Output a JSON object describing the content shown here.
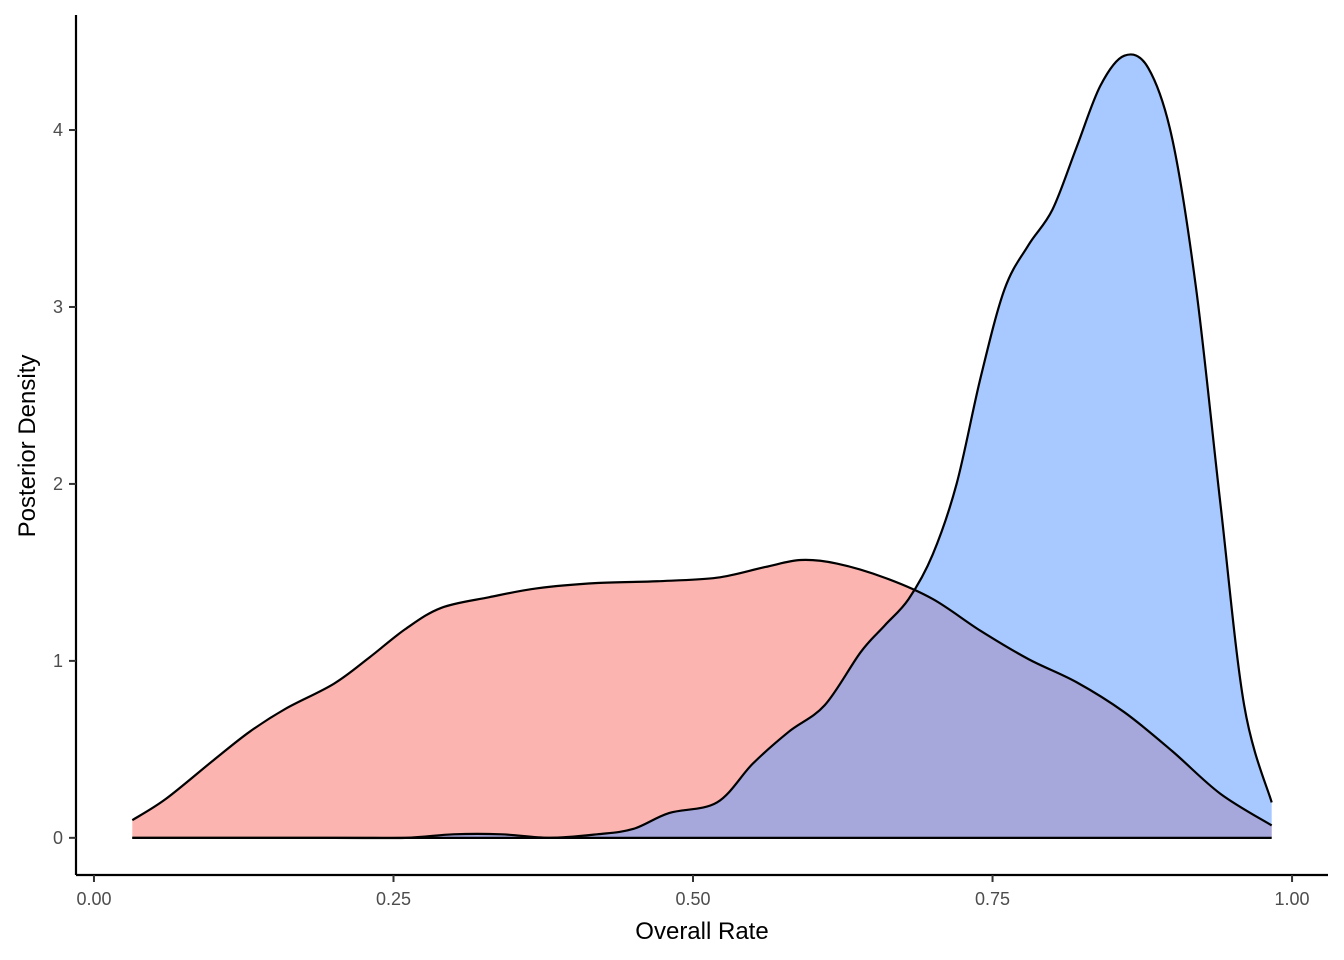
{
  "chart_data": {
    "type": "area",
    "xlabel": "Overall Rate",
    "ylabel": "Posterior Density",
    "xlim": [
      -0.015,
      1.03
    ],
    "ylim": [
      -0.21,
      4.65
    ],
    "x_ticks": [
      0,
      0.25,
      0.5,
      0.75,
      1
    ],
    "x_tick_labels": [
      "0.00",
      "0.25",
      "0.50",
      "0.75",
      "1.00"
    ],
    "y_ticks": [
      0,
      1,
      2,
      3,
      4
    ],
    "y_tick_labels": [
      "0",
      "1",
      "2",
      "3",
      "4"
    ],
    "grid": false,
    "legend": "none",
    "x_range": [
      0.032,
      0.983
    ],
    "series": [
      {
        "color": "#f8766d",
        "fill": "#fcb3b5",
        "points": [
          [
            0.032,
            0.1
          ],
          [
            0.06,
            0.22
          ],
          [
            0.1,
            0.44
          ],
          [
            0.13,
            0.6
          ],
          [
            0.16,
            0.73
          ],
          [
            0.2,
            0.87
          ],
          [
            0.23,
            1.02
          ],
          [
            0.26,
            1.18
          ],
          [
            0.29,
            1.3
          ],
          [
            0.33,
            1.36
          ],
          [
            0.37,
            1.41
          ],
          [
            0.42,
            1.44
          ],
          [
            0.47,
            1.45
          ],
          [
            0.52,
            1.47
          ],
          [
            0.56,
            1.53
          ],
          [
            0.59,
            1.57
          ],
          [
            0.62,
            1.55
          ],
          [
            0.66,
            1.47
          ],
          [
            0.7,
            1.35
          ],
          [
            0.74,
            1.17
          ],
          [
            0.78,
            1.01
          ],
          [
            0.82,
            0.88
          ],
          [
            0.86,
            0.71
          ],
          [
            0.9,
            0.49
          ],
          [
            0.94,
            0.25
          ],
          [
            0.983,
            0.07
          ]
        ]
      },
      {
        "color": "#619cff",
        "fill": "#b3b3ff",
        "points": [
          [
            0.032,
            0.0
          ],
          [
            0.2,
            0.0
          ],
          [
            0.26,
            0.0
          ],
          [
            0.3,
            0.02
          ],
          [
            0.34,
            0.02
          ],
          [
            0.38,
            0.0
          ],
          [
            0.42,
            0.02
          ],
          [
            0.45,
            0.05
          ],
          [
            0.48,
            0.14
          ],
          [
            0.52,
            0.2
          ],
          [
            0.55,
            0.42
          ],
          [
            0.58,
            0.6
          ],
          [
            0.61,
            0.75
          ],
          [
            0.64,
            1.05
          ],
          [
            0.66,
            1.2
          ],
          [
            0.68,
            1.35
          ],
          [
            0.7,
            1.6
          ],
          [
            0.72,
            2.0
          ],
          [
            0.74,
            2.6
          ],
          [
            0.76,
            3.1
          ],
          [
            0.78,
            3.35
          ],
          [
            0.8,
            3.55
          ],
          [
            0.82,
            3.9
          ],
          [
            0.84,
            4.25
          ],
          [
            0.86,
            4.42
          ],
          [
            0.88,
            4.35
          ],
          [
            0.9,
            3.95
          ],
          [
            0.92,
            3.1
          ],
          [
            0.94,
            1.9
          ],
          [
            0.96,
            0.75
          ],
          [
            0.983,
            0.2
          ]
        ]
      }
    ]
  }
}
